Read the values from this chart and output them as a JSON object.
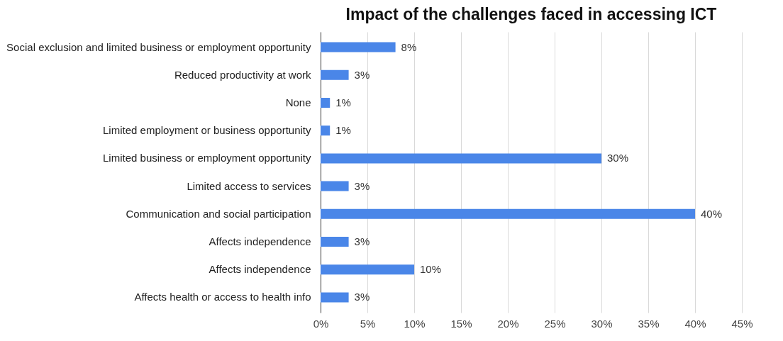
{
  "chart_data": {
    "type": "bar",
    "orientation": "horizontal",
    "title": "Impact of the challenges faced in accessing ICT",
    "categories": [
      "Social exclusion and limited business or employment opportunity",
      "Reduced productivity at work",
      "None",
      "Limited employment or business opportunity",
      "Limited business or employment opportunity",
      "Limited access to services",
      "Communication and social participation",
      "Affects independence ",
      "Affects independence",
      "Affects health or access to health info"
    ],
    "values": [
      8,
      3,
      1,
      1,
      30,
      3,
      40,
      3,
      10,
      3
    ],
    "value_labels": [
      "8%",
      "3%",
      "1%",
      "1%",
      "30%",
      "3%",
      "40%",
      "3%",
      "10%",
      "3%"
    ],
    "color": "#4a86e8",
    "xlim": [
      0,
      45
    ],
    "xticks": [
      {
        "value": 0,
        "label": "0%"
      },
      {
        "value": 5,
        "label": "5%"
      },
      {
        "value": 10,
        "label": "10%"
      },
      {
        "value": 15,
        "label": "15%"
      },
      {
        "value": 20,
        "label": "20%"
      },
      {
        "value": 25,
        "label": "25%"
      },
      {
        "value": 30,
        "label": "30%"
      },
      {
        "value": 35,
        "label": "35%"
      },
      {
        "value": 40,
        "label": "40%"
      },
      {
        "value": 45,
        "label": "45%"
      }
    ],
    "grid": "x"
  }
}
